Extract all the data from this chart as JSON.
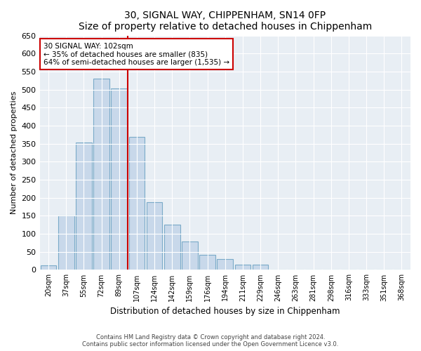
{
  "title": "30, SIGNAL WAY, CHIPPENHAM, SN14 0FP",
  "subtitle": "Size of property relative to detached houses in Chippenham",
  "xlabel": "Distribution of detached houses by size in Chippenham",
  "ylabel": "Number of detached properties",
  "bar_labels": [
    "20sqm",
    "37sqm",
    "55sqm",
    "72sqm",
    "89sqm",
    "107sqm",
    "124sqm",
    "142sqm",
    "159sqm",
    "176sqm",
    "194sqm",
    "211sqm",
    "229sqm",
    "246sqm",
    "263sqm",
    "281sqm",
    "298sqm",
    "316sqm",
    "333sqm",
    "351sqm",
    "368sqm"
  ],
  "bar_values": [
    12,
    150,
    353,
    530,
    503,
    368,
    188,
    125,
    78,
    42,
    30,
    14,
    14,
    0,
    0,
    0,
    0,
    0,
    0,
    0,
    0
  ],
  "bar_color": "#c8d8ea",
  "bar_edge_color": "#7aaac8",
  "vline_color": "#cc0000",
  "annotation_title": "30 SIGNAL WAY: 102sqm",
  "annotation_line1": "← 35% of detached houses are smaller (835)",
  "annotation_line2": "64% of semi-detached houses are larger (1,535) →",
  "annotation_box_color": "#ffffff",
  "annotation_box_edge": "#cc0000",
  "ylim": [
    0,
    650
  ],
  "yticks": [
    0,
    50,
    100,
    150,
    200,
    250,
    300,
    350,
    400,
    450,
    500,
    550,
    600,
    650
  ],
  "footer_line1": "Contains HM Land Registry data © Crown copyright and database right 2024.",
  "footer_line2": "Contains public sector information licensed under the Open Government Licence v3.0.",
  "background_color": "#ffffff",
  "plot_bg_color": "#e8eef4"
}
